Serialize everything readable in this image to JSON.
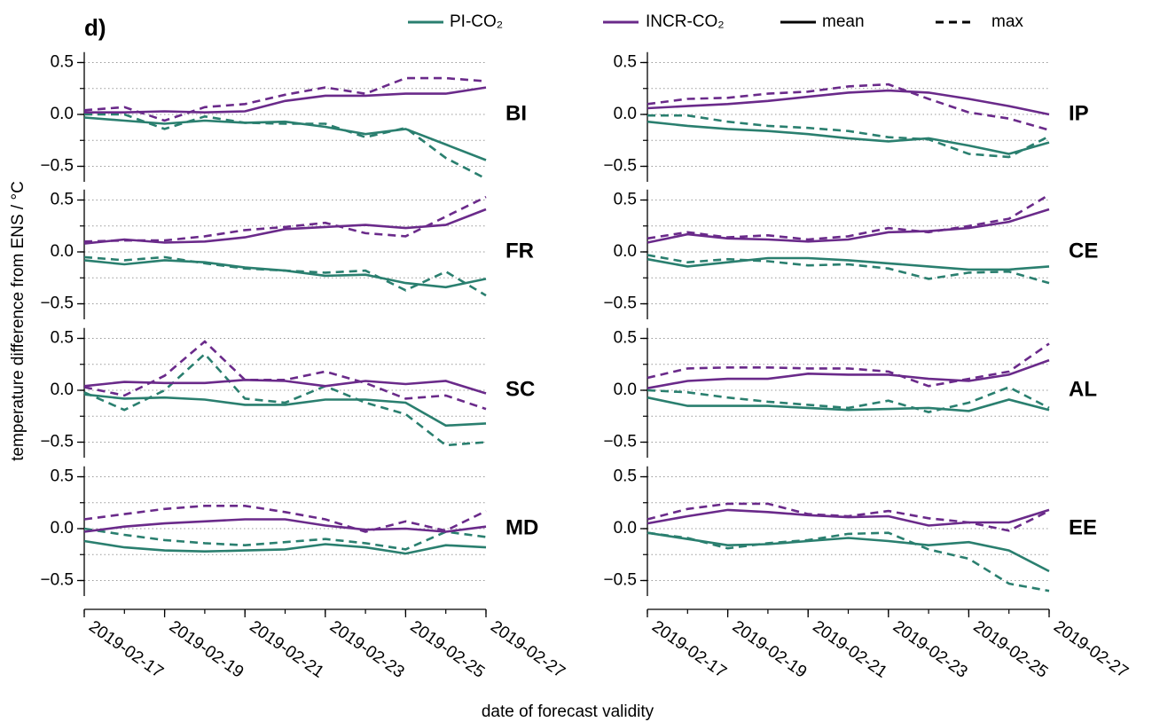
{
  "chart_data": {
    "type": "line",
    "title": "d)",
    "y_label": "temperature difference from ENS / °C",
    "x_label": "date of forecast validity",
    "x": [
      "2019-02-17",
      "2019-02-18",
      "2019-02-19",
      "2019-02-20",
      "2019-02-21",
      "2019-02-22",
      "2019-02-23",
      "2019-02-24",
      "2019-02-25",
      "2019-02-26",
      "2019-02-27"
    ],
    "xticks": [
      "2019-02-17",
      "2019-02-19",
      "2019-02-21",
      "2019-02-23",
      "2019-02-25",
      "2019-02-27"
    ],
    "ylim": [
      -0.65,
      0.6
    ],
    "yticks": [
      {
        "value": 0.5,
        "label": "0.5"
      },
      {
        "value": 0,
        "label": "0.0"
      },
      {
        "value": -0.5,
        "label": "−0.5"
      }
    ],
    "ygrid": [
      0.5,
      0.25,
      0,
      -0.25,
      -0.5
    ],
    "grid": true,
    "series": [
      {
        "name": "PI-CO₂",
        "color": "#2a7f6f"
      },
      {
        "name": "INCR-CO₂",
        "color": "#6a2a8a"
      }
    ],
    "styles": [
      {
        "name": "mean",
        "dash": "none"
      },
      {
        "name": "max",
        "dash": "9 6"
      }
    ],
    "panels": [
      {
        "label": "BI",
        "values": [
          [
            [
              -0.03,
              -0.06,
              -0.09,
              -0.06,
              -0.08,
              -0.07,
              -0.12,
              -0.19,
              -0.14,
              -0.29,
              -0.44
            ],
            [
              0.0,
              0.0,
              -0.14,
              -0.02,
              -0.08,
              -0.09,
              -0.09,
              -0.22,
              -0.13,
              -0.42,
              -0.62
            ]
          ],
          [
            [
              0.02,
              0.02,
              0.03,
              0.02,
              0.03,
              0.13,
              0.18,
              0.18,
              0.2,
              0.2,
              0.26
            ],
            [
              0.04,
              0.07,
              -0.06,
              0.07,
              0.1,
              0.19,
              0.26,
              0.2,
              0.35,
              0.35,
              0.32
            ]
          ]
        ]
      },
      {
        "label": "FR",
        "values": [
          [
            [
              -0.08,
              -0.12,
              -0.08,
              -0.1,
              -0.15,
              -0.18,
              -0.23,
              -0.22,
              -0.3,
              -0.34,
              -0.26
            ],
            [
              -0.05,
              -0.08,
              -0.05,
              -0.11,
              -0.16,
              -0.18,
              -0.2,
              -0.18,
              -0.37,
              -0.19,
              -0.42
            ]
          ],
          [
            [
              0.08,
              0.12,
              0.09,
              0.1,
              0.14,
              0.22,
              0.24,
              0.26,
              0.23,
              0.26,
              0.41
            ],
            [
              0.1,
              0.11,
              0.11,
              0.15,
              0.21,
              0.24,
              0.28,
              0.18,
              0.15,
              0.34,
              0.53
            ]
          ]
        ]
      },
      {
        "label": "SC",
        "values": [
          [
            [
              -0.04,
              -0.08,
              -0.07,
              -0.09,
              -0.14,
              -0.14,
              -0.09,
              -0.09,
              -0.12,
              -0.34,
              -0.32
            ],
            [
              -0.02,
              -0.19,
              0.0,
              0.35,
              -0.08,
              -0.12,
              0.04,
              -0.12,
              -0.23,
              -0.53,
              -0.5
            ]
          ],
          [
            [
              0.04,
              0.08,
              0.07,
              0.07,
              0.1,
              0.09,
              0.04,
              0.09,
              0.06,
              0.09,
              -0.03
            ],
            [
              0.03,
              -0.05,
              0.14,
              0.47,
              0.1,
              0.1,
              0.18,
              0.07,
              -0.08,
              -0.05,
              -0.18
            ]
          ]
        ]
      },
      {
        "label": "MD",
        "values": [
          [
            [
              -0.12,
              -0.18,
              -0.21,
              -0.22,
              -0.21,
              -0.2,
              -0.15,
              -0.18,
              -0.24,
              -0.16,
              -0.18
            ],
            [
              0.0,
              -0.06,
              -0.11,
              -0.14,
              -0.16,
              -0.13,
              -0.1,
              -0.14,
              -0.2,
              -0.03,
              -0.08
            ]
          ],
          [
            [
              -0.03,
              0.02,
              0.05,
              0.07,
              0.09,
              0.09,
              0.03,
              -0.01,
              0.0,
              -0.03,
              0.02
            ],
            [
              0.09,
              0.14,
              0.19,
              0.22,
              0.22,
              0.16,
              0.09,
              -0.03,
              0.07,
              -0.02,
              0.17
            ]
          ]
        ]
      },
      {
        "label": "IP",
        "values": [
          [
            [
              -0.07,
              -0.11,
              -0.14,
              -0.16,
              -0.19,
              -0.23,
              -0.26,
              -0.23,
              -0.3,
              -0.38,
              -0.27
            ],
            [
              -0.01,
              -0.01,
              -0.07,
              -0.11,
              -0.13,
              -0.16,
              -0.22,
              -0.24,
              -0.38,
              -0.41,
              -0.21
            ]
          ],
          [
            [
              0.06,
              0.08,
              0.1,
              0.13,
              0.17,
              0.21,
              0.23,
              0.21,
              0.15,
              0.08,
              0.0
            ],
            [
              0.1,
              0.15,
              0.16,
              0.2,
              0.22,
              0.27,
              0.29,
              0.15,
              0.02,
              -0.04,
              -0.15
            ]
          ]
        ]
      },
      {
        "label": "CE",
        "values": [
          [
            [
              -0.07,
              -0.14,
              -0.1,
              -0.06,
              -0.06,
              -0.08,
              -0.11,
              -0.14,
              -0.17,
              -0.17,
              -0.14
            ],
            [
              -0.03,
              -0.1,
              -0.07,
              -0.09,
              -0.13,
              -0.12,
              -0.16,
              -0.26,
              -0.2,
              -0.19,
              -0.3
            ]
          ],
          [
            [
              0.09,
              0.17,
              0.13,
              0.12,
              0.1,
              0.12,
              0.19,
              0.2,
              0.23,
              0.29,
              0.41
            ],
            [
              0.13,
              0.19,
              0.14,
              0.16,
              0.12,
              0.15,
              0.23,
              0.19,
              0.25,
              0.32,
              0.55
            ]
          ]
        ]
      },
      {
        "label": "AL",
        "values": [
          [
            [
              -0.07,
              -0.15,
              -0.15,
              -0.15,
              -0.17,
              -0.19,
              -0.18,
              -0.17,
              -0.2,
              -0.09,
              -0.19
            ],
            [
              0.0,
              -0.02,
              -0.07,
              -0.11,
              -0.14,
              -0.17,
              -0.1,
              -0.21,
              -0.12,
              0.03,
              -0.17
            ]
          ],
          [
            [
              0.02,
              0.09,
              0.11,
              0.11,
              0.16,
              0.15,
              0.15,
              0.11,
              0.09,
              0.15,
              0.29
            ],
            [
              0.12,
              0.21,
              0.22,
              0.22,
              0.21,
              0.21,
              0.18,
              0.04,
              0.11,
              0.18,
              0.45
            ]
          ]
        ]
      },
      {
        "label": "EE",
        "values": [
          [
            [
              -0.04,
              -0.1,
              -0.16,
              -0.15,
              -0.12,
              -0.09,
              -0.12,
              -0.16,
              -0.13,
              -0.21,
              -0.41
            ],
            [
              -0.04,
              -0.09,
              -0.19,
              -0.14,
              -0.11,
              -0.05,
              -0.04,
              -0.2,
              -0.29,
              -0.53,
              -0.6
            ]
          ],
          [
            [
              0.05,
              0.12,
              0.18,
              0.16,
              0.13,
              0.11,
              0.12,
              0.03,
              0.06,
              0.06,
              0.18
            ],
            [
              0.09,
              0.19,
              0.24,
              0.24,
              0.14,
              0.12,
              0.17,
              0.1,
              0.06,
              -0.02,
              0.17
            ]
          ]
        ]
      }
    ]
  }
}
